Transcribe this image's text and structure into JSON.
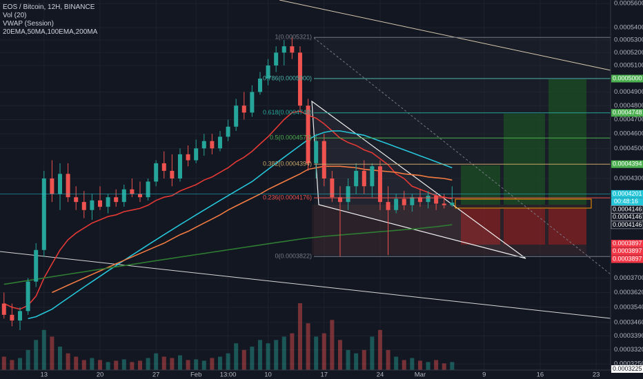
{
  "chart_data": {
    "type": "candlestick",
    "title": "EOS / Bitcoin, 12H, BINANCE",
    "indicators": [
      "Vol (20)",
      "VWAP (Session)",
      "20EMA,50MA,100EMA,200MA"
    ],
    "log_scale": true,
    "grid": true,
    "up_color": "#26a69a",
    "down_color": "#ef5350",
    "categories": [
      null,
      null,
      null,
      null,
      null,
      null,
      null,
      null,
      null,
      null,
      null,
      null,
      null,
      null,
      null,
      null,
      null,
      null,
      null,
      null,
      null,
      null,
      null,
      null,
      null,
      null,
      null,
      null,
      null,
      null,
      null,
      null,
      null,
      null,
      null,
      null,
      null,
      null,
      null,
      null,
      null,
      null,
      null,
      null,
      null,
      null,
      null,
      null,
      null,
      null,
      null,
      null,
      null,
      null,
      null,
      null,
      null
    ],
    "open": [
      0.000356,
      0.00035,
      0.000347,
      0.000352,
      0.000368,
      0.000386,
      0.00043,
      0.00042,
      0.000433,
      0.000418,
      0.000415,
      0.00041,
      0.000416,
      0.000412,
      0.000418,
      0.000415,
      0.000423,
      0.00042,
      0.000418,
      0.000428,
      0.00044,
      0.000435,
      0.00043,
      0.000446,
      0.000442,
      0.00045,
      0.000455,
      0.00045,
      0.000458,
      0.000465,
      0.00048,
      0.000475,
      0.00049,
      0.0005,
      0.00051,
      0.00052,
      0.000525,
      0.00052,
      0.00048,
      0.00044,
      0.000455,
      0.00043,
      0.000418,
      0.000415,
      0.000425,
      0.000435,
      0.000425,
      0.000438,
      0.000415,
      0.00041,
      0.000417,
      0.000413,
      0.000418,
      0.000415,
      0.000419,
      0.000414,
      0.000413
    ],
    "high": [
      0.000362,
      0.000356,
      0.000354,
      0.00037,
      0.00039,
      0.000435,
      0.000442,
      0.00044,
      0.00044,
      0.000425,
      0.000422,
      0.00042,
      0.000425,
      0.00042,
      0.000423,
      0.000426,
      0.00043,
      0.000428,
      0.00043,
      0.000442,
      0.000448,
      0.000446,
      0.00045,
      0.000452,
      0.000456,
      0.00046,
      0.00046,
      0.000462,
      0.00047,
      0.000485,
      0.00049,
      0.000495,
      0.000505,
      0.000515,
      0.000525,
      0.00053,
      0.0005321,
      0.000525,
      0.000485,
      0.00046,
      0.00046,
      0.000435,
      0.000425,
      0.00043,
      0.00044,
      0.000442,
      0.00044,
      0.000442,
      0.000425,
      0.00042,
      0.000422,
      0.00042,
      0.000423,
      0.000422,
      0.000421,
      0.00042,
      0.000425
    ],
    "low": [
      0.000348,
      0.000344,
      0.000342,
      0.00035,
      0.000365,
      0.000382,
      0.000415,
      0.00041,
      0.000415,
      0.00041,
      0.000405,
      0.000404,
      0.00041,
      0.000408,
      0.000412,
      0.000412,
      0.000418,
      0.000415,
      0.000416,
      0.000425,
      0.00043,
      0.000425,
      0.000428,
      0.000438,
      0.00044,
      0.000445,
      0.000446,
      0.000448,
      0.000455,
      0.000462,
      0.00047,
      0.000472,
      0.000488,
      0.000495,
      0.000505,
      0.00051,
      0.000515,
      0.000475,
      0.000435,
      0.00043,
      0.000425,
      0.000415,
      0.0003822,
      0.00041,
      0.00042,
      0.00042,
      0.000418,
      0.00041,
      0.000383,
      0.000408,
      0.00041,
      0.000409,
      0.000412,
      0.000411,
      0.00041,
      0.000411,
      0.000412
    ],
    "close": [
      0.00035,
      0.000347,
      0.000352,
      0.000368,
      0.000386,
      0.00043,
      0.00042,
      0.000433,
      0.000418,
      0.000415,
      0.00041,
      0.000416,
      0.000412,
      0.000418,
      0.000415,
      0.000423,
      0.00042,
      0.000418,
      0.000428,
      0.00044,
      0.000435,
      0.00043,
      0.000446,
      0.000442,
      0.00045,
      0.000455,
      0.00045,
      0.000458,
      0.000465,
      0.00048,
      0.000475,
      0.00049,
      0.0005,
      0.00051,
      0.00052,
      0.000525,
      0.00052,
      0.00048,
      0.00044,
      0.000455,
      0.00043,
      0.000418,
      0.000415,
      0.000425,
      0.000435,
      0.000425,
      0.000438,
      0.000415,
      0.00041,
      0.000417,
      0.000413,
      0.000418,
      0.000415,
      0.000419,
      0.000414,
      0.000413,
      0.0004146
    ],
    "volume": [
      20,
      15,
      18,
      30,
      45,
      60,
      50,
      35,
      25,
      20,
      15,
      18,
      15,
      12,
      14,
      16,
      12,
      14,
      18,
      25,
      20,
      18,
      22,
      15,
      16,
      14,
      18,
      20,
      25,
      40,
      30,
      35,
      45,
      40,
      45,
      50,
      55,
      100,
      70,
      50,
      55,
      75,
      45,
      30,
      25,
      30,
      50,
      60,
      30,
      20,
      15,
      18,
      14,
      12,
      15,
      10,
      12
    ],
    "volume_ylim": [
      0,
      100
    ],
    "series": [
      {
        "color": "#e53935",
        "values": [
          0.000356,
          0.000354,
          0.000353,
          0.000355,
          0.00036,
          0.00037,
          0.000378,
          0.000386,
          0.000392,
          0.000396,
          0.000399,
          0.000402,
          0.000404,
          0.000406,
          0.000407,
          0.000409,
          0.00041,
          0.000411,
          0.000413,
          0.000416,
          0.000418,
          0.000419,
          0.000422,
          0.000424,
          0.000426,
          0.000429,
          0.000431,
          0.000434,
          0.000437,
          0.000441,
          0.000444,
          0.000448,
          0.000453,
          0.000458,
          0.000464,
          0.00047,
          0.000475,
          0.000476,
          0.000473,
          0.000471,
          0.000467,
          0.000462,
          0.000457,
          0.000454,
          0.000452,
          0.000449,
          0.000447,
          0.000443,
          0.000439,
          0.000433,
          0.00043,
          0.000425,
          0.000423,
          0.000421,
          0.000419,
          0.000418,
          0.000417
        ]
      },
      {
        "color": "#26c6da",
        "values": [
          null,
          null,
          null,
          0.000348,
          0.000349,
          0.000351,
          0.000353,
          0.000356,
          0.000359,
          0.000362,
          0.000365,
          0.000368,
          0.000371,
          0.000374,
          0.000377,
          0.00038,
          0.000383,
          0.000386,
          0.000389,
          0.000392,
          0.000395,
          0.000398,
          0.000401,
          0.000404,
          0.000407,
          0.00041,
          0.000413,
          0.000416,
          0.000419,
          0.000422,
          0.000425,
          0.000428,
          0.000432,
          0.000436,
          0.00044,
          0.000444,
          0.000448,
          0.000452,
          0.000456,
          0.000459,
          0.000461,
          0.000462,
          0.000462,
          0.000461,
          0.00046,
          0.000459,
          0.000457,
          0.000455,
          0.000453,
          0.000451,
          0.000449,
          0.000447,
          0.000445,
          0.000443,
          0.000441,
          0.000439,
          0.000437
        ]
      },
      {
        "color": "#f57c42",
        "values": [
          null,
          null,
          null,
          null,
          null,
          null,
          0.000362,
          0.000364,
          0.000366,
          0.000368,
          0.00037,
          0.000372,
          0.000374,
          0.000376,
          0.000378,
          0.00038,
          0.000382,
          0.000384,
          0.000386,
          0.000388,
          0.00039,
          0.0003925,
          0.000395,
          0.000397,
          0.0003995,
          0.000402,
          0.0004045,
          0.000407,
          0.00041,
          0.0004125,
          0.000415,
          0.0004175,
          0.00042,
          0.000423,
          0.0004255,
          0.000428,
          0.0004305,
          0.000433,
          0.000436,
          0.000437,
          0.000438,
          0.000438,
          0.000438,
          0.0004375,
          0.000437,
          0.000436,
          0.0004355,
          0.000435,
          0.0004345,
          0.000434,
          0.000433,
          0.0004325,
          0.000432,
          0.000431,
          0.0004305,
          0.00043,
          0.000429
        ]
      },
      {
        "color": "#2e7d32",
        "values": [
          0.0003665,
          0.0003672,
          0.0003679,
          0.0003686,
          0.0003693,
          0.00037,
          0.0003707,
          0.0003714,
          0.0003721,
          0.0003728,
          0.0003735,
          0.0003742,
          0.0003749,
          0.0003756,
          0.0003763,
          0.000377,
          0.0003777,
          0.0003784,
          0.0003791,
          0.0003798,
          0.0003805,
          0.0003812,
          0.0003819,
          0.0003826,
          0.0003833,
          0.000384,
          0.0003847,
          0.0003854,
          0.0003861,
          0.0003868,
          0.0003875,
          0.0003882,
          0.0003889,
          0.0003896,
          0.0003903,
          0.000391,
          0.0003917,
          0.0003924,
          0.000393,
          0.0003935,
          0.000394,
          0.0003944,
          0.0003948,
          0.0003952,
          0.0003956,
          0.000396,
          0.0003964,
          0.0003968,
          0.0003972,
          0.0003976,
          0.000398,
          0.0003984,
          0.0003988,
          0.0003993,
          0.0003998,
          0.0004004,
          0.000401
        ]
      }
    ],
    "xlim": [
      -0.5,
      75.8
    ],
    "xticks": [
      {
        "value": 5,
        "label": "13"
      },
      {
        "value": 12,
        "label": "20"
      },
      {
        "value": 19,
        "label": "27"
      },
      {
        "value": 24,
        "label": "Feb"
      },
      {
        "value": 28,
        "label": "13:00"
      },
      {
        "value": 33,
        "label": "10"
      },
      {
        "value": 40,
        "label": "17"
      },
      {
        "value": 47,
        "label": "24"
      },
      {
        "value": 52,
        "label": "Mar"
      },
      {
        "value": 60,
        "label": "9"
      },
      {
        "value": 67,
        "label": "16"
      },
      {
        "value": 74,
        "label": "23"
      }
    ],
    "ylim": [
      0.000322,
      0.000563
    ],
    "yticks": [
      {
        "value": 0.00056,
        "label": "0.0005600"
      },
      {
        "value": 0.00054,
        "label": "0.0005400"
      },
      {
        "value": 0.00053,
        "label": "0.0005300"
      },
      {
        "value": 0.00052,
        "label": "0.0005200"
      },
      {
        "value": 0.00051,
        "label": "0.0005100"
      },
      {
        "value": 0.00049,
        "label": "0.0004900"
      },
      {
        "value": 0.00048,
        "label": "0.0004800"
      },
      {
        "value": 0.00047,
        "label": "0.0004700"
      },
      {
        "value": 0.00046,
        "label": "0.0004600"
      },
      {
        "value": 0.00045,
        "label": "0.0004500"
      },
      {
        "value": 0.00043,
        "label": "0.0004300"
      },
      {
        "value": 0.00037,
        "label": "0.0003700"
      },
      {
        "value": 0.000362,
        "label": "0.0003620"
      },
      {
        "value": 0.000354,
        "label": "0.0003540"
      },
      {
        "value": 0.000346,
        "label": "0.0003460"
      },
      {
        "value": 0.000339,
        "label": "0.0003390"
      },
      {
        "value": 0.000332,
        "label": "0.0003320"
      },
      {
        "value": 0.000325,
        "label": "0.0003250"
      }
    ],
    "fib_levels": [
      {
        "value": 0.0005321,
        "label": "1(0.0005321)",
        "color": "#787b86"
      },
      {
        "value": 0.0005,
        "label": "0.786(0.0005000)",
        "color": "#4db6ac"
      },
      {
        "value": 0.0004748,
        "label": "0.618(0.0004748)",
        "color": "#26a69a"
      },
      {
        "value": 0.0004571,
        "label": "0.5(0.0004571)",
        "color": "#4caf50"
      },
      {
        "value": 0.0004394,
        "label": "0.382(0.0004394)",
        "color": "#c9a86a"
      },
      {
        "value": 0.0004176,
        "label": "0.236(0.0004176)",
        "color": "#ef5350"
      },
      {
        "value": 0.0003822,
        "label": "0(0.0003822)",
        "color": "#787b86"
      }
    ],
    "price_labels": [
      {
        "value": 0.0005,
        "label": "0.0005000",
        "color": "#4caf50"
      },
      {
        "value": 0.0004748,
        "label": "0.0004748",
        "color": "#4caf50"
      },
      {
        "value": 0.0004394,
        "label": "0.0004394",
        "color": "#4caf50"
      },
      {
        "value": 0.0004201,
        "label": "0.0004201",
        "color": "#26c6da"
      },
      {
        "value": 0.0004146,
        "label": "0.0004146",
        "color": "#131722"
      },
      {
        "value": 0.0004146,
        "label": "0.0004146",
        "color": "#131722"
      },
      {
        "value": 0.0004146,
        "label": "0.0004146",
        "color": "#131722"
      },
      {
        "value": 0.0003897,
        "label": "0.0003897",
        "color": "#f23645"
      },
      {
        "value": 0.0003897,
        "label": "0.0003897",
        "color": "#f23645"
      },
      {
        "value": 0.0003897,
        "label": "0.0003897",
        "color": "#f23645"
      },
      {
        "value": 0.0003225,
        "label": "0.0003225",
        "color": "#ffffff"
      }
    ],
    "countdown": "00:48:16"
  }
}
